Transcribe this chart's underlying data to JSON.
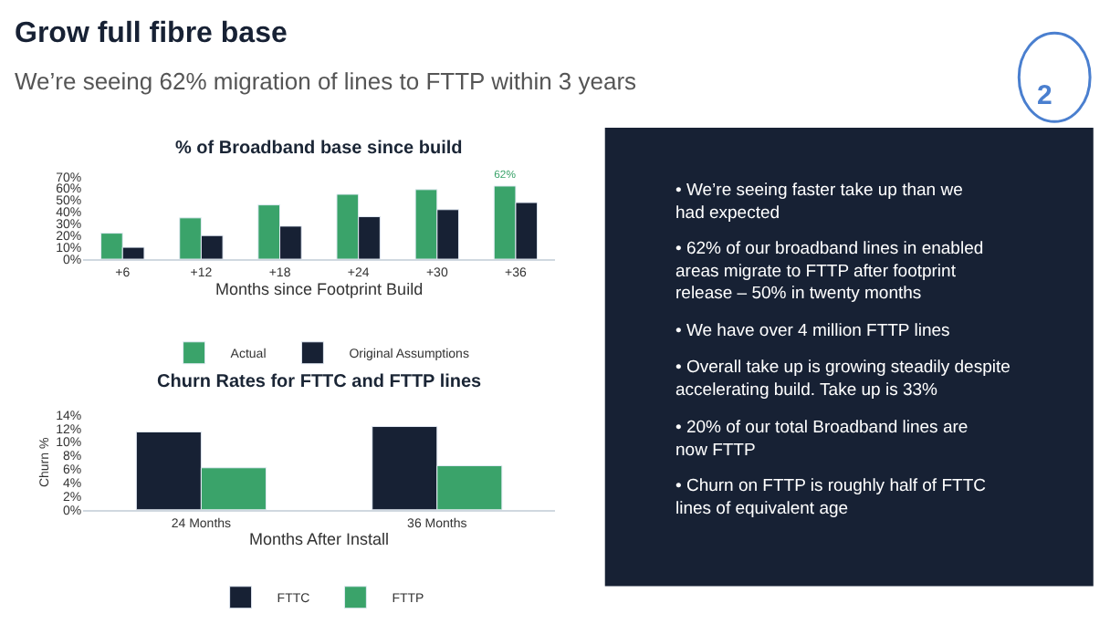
{
  "chart_data": [
    {
      "type": "other",
      "title": "Grow full fibre base",
      "subtitle": "We’re seeing 62% migration of lines to FTTP within 3 years",
      "annotations": [
        "2"
      ]
    },
    {
      "type": "bar",
      "title": "% of Broadband base since build",
      "xlabel": "Months since Footprint Build",
      "categories": [
        "+6",
        "+12",
        "+18",
        "+24",
        "+30",
        "+36"
      ],
      "series": [
        {
          "name": "Actual",
          "color": "#3aa36a",
          "values": [
            22,
            35,
            46,
            55,
            59,
            62
          ],
          "value_labels": [
            null,
            null,
            null,
            null,
            null,
            "62%"
          ]
        },
        {
          "name": "Original Assumptions",
          "color": "#172134",
          "values": [
            10,
            20,
            28,
            36,
            42,
            48
          ]
        }
      ],
      "ylim": [
        0,
        70
      ],
      "yticks": [
        {
          "value": 0,
          "label": "0%"
        },
        {
          "value": 10,
          "label": "10%"
        },
        {
          "value": 20,
          "label": "20%"
        },
        {
          "value": 30,
          "label": "30%"
        },
        {
          "value": 40,
          "label": "40%"
        },
        {
          "value": 50,
          "label": "50%"
        },
        {
          "value": 60,
          "label": "60%"
        },
        {
          "value": 70,
          "label": "70%"
        }
      ],
      "grid": false,
      "legend": "bottom"
    },
    {
      "type": "bar",
      "title": "Churn Rates for FTTC and FTTP lines",
      "xlabel": "Months After Install",
      "ylabel": "Churn %",
      "categories": [
        "24 Months",
        "36 Months"
      ],
      "series": [
        {
          "name": "FTTC",
          "color": "#172134",
          "values": [
            11.5,
            12.3
          ]
        },
        {
          "name": "FTTP",
          "color": "#3aa36a",
          "values": [
            6.2,
            6.5
          ]
        }
      ],
      "ylim": [
        0,
        14
      ],
      "yticks": [
        {
          "value": 0,
          "label": "0%"
        },
        {
          "value": 2,
          "label": "2%"
        },
        {
          "value": 4,
          "label": "4%"
        },
        {
          "value": 6,
          "label": "6%"
        },
        {
          "value": 8,
          "label": "8%"
        },
        {
          "value": 10,
          "label": "10%"
        },
        {
          "value": 12,
          "label": "12%"
        },
        {
          "value": 14,
          "label": "14%"
        }
      ],
      "grid": false,
      "legend": "bottom"
    },
    {
      "type": "other",
      "annotations": [
        "• We’re seeing faster take up than we\nhad expected",
        "• 62% of our broadband lines in enabled\nareas migrate to FTTP after footprint\nrelease – 50% in twenty months",
        "• We have over 4 million FTTP lines",
        "• Overall take up is growing steadily despite\naccelerating build. Take up is 33%",
        "• 20% of our total Broadband lines are\nnow FTTP",
        "• Churn on FTTP is roughly half of FTTC\nlines of equivalent age"
      ]
    }
  ]
}
